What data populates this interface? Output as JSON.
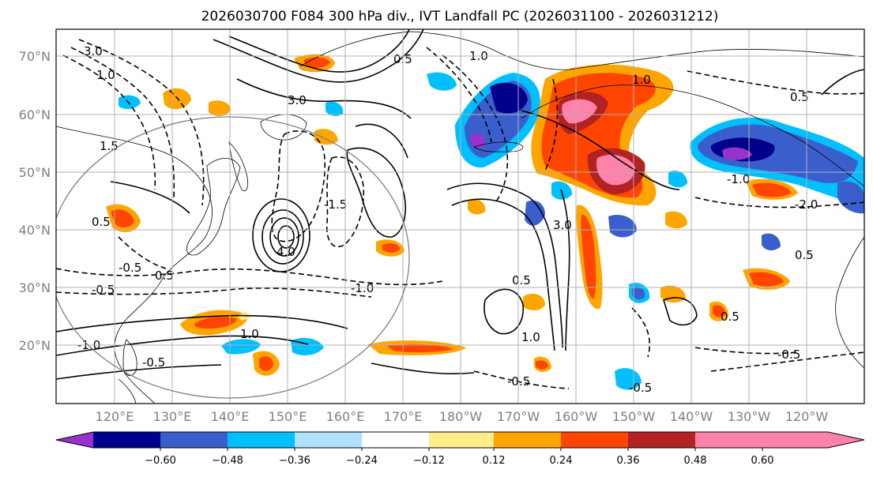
{
  "title": "2026030700 F084 300 hPa div., IVT Landfall PC (2026031100 - 2026031212)",
  "map": {
    "lat_ticks": [
      "70°N",
      "60°N",
      "50°N",
      "40°N",
      "30°N",
      "20°N"
    ],
    "lon_ticks": [
      "120°E",
      "130°E",
      "140°E",
      "150°E",
      "160°E",
      "170°E",
      "180°W",
      "170°W",
      "160°W",
      "150°W",
      "140°W",
      "130°W",
      "120°W"
    ],
    "contour_labels": [
      "3.0",
      "1.0",
      "0.5",
      "-0.5",
      "-1.0",
      "1.5",
      "4.0",
      "-1.5",
      "3.0",
      "0.5",
      "1.0",
      "-0.5",
      "0.5",
      "-0.5",
      "-1.0",
      "3.0",
      "-0.5",
      "0.5",
      "1.0",
      "1.0",
      "-0.5",
      "0.5",
      "-0.5",
      "-2.0",
      "-1.0",
      "1.0",
      "0.5",
      "0.5"
    ]
  },
  "colorbar": {
    "tick_labels": [
      "−0.60",
      "−0.48",
      "−0.36",
      "−0.24",
      "−0.12",
      "0.12",
      "0.24",
      "0.36",
      "0.48",
      "0.60"
    ],
    "colors": [
      "#9932cc",
      "#00008b",
      "#3a5fcd",
      "#00bfff",
      "#b0e2ff",
      "#ffffff",
      "#ffec8b",
      "#ffa500",
      "#ff4500",
      "#b22222",
      "#ff82ab"
    ]
  }
}
